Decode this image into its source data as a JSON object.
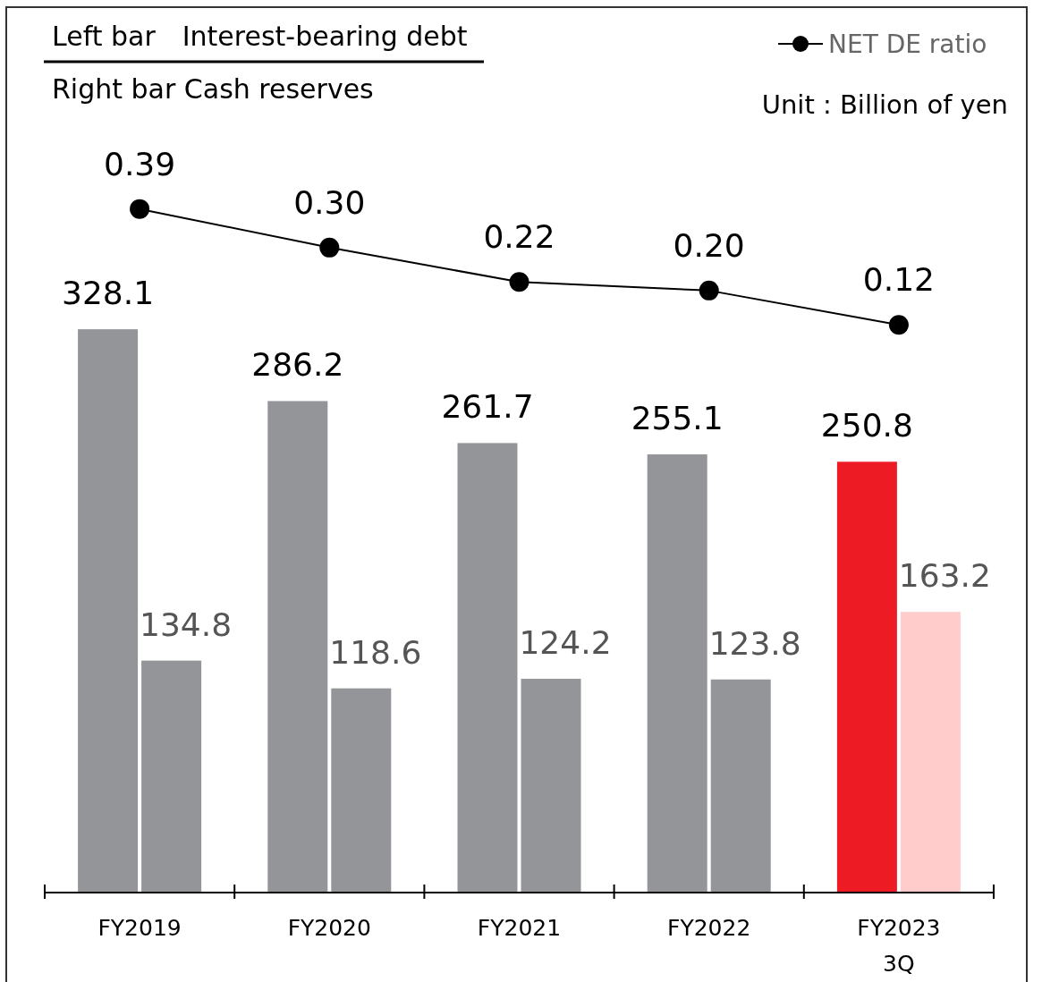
{
  "chart_data": {
    "type": "bar",
    "categories": [
      "FY2019",
      "FY2020",
      "FY2021",
      "FY2022",
      "FY2023\n3Q"
    ],
    "series": [
      {
        "colors": [
          "#939598",
          "#939598",
          "#939598",
          "#939598",
          "#ed1c24"
        ],
        "values": [
          328.1,
          286.2,
          261.7,
          255.1,
          250.8
        ]
      },
      {
        "colors": [
          "#939598",
          "#939598",
          "#939598",
          "#939598",
          "#ffcccb"
        ],
        "values": [
          134.8,
          118.6,
          124.2,
          123.8,
          163.2
        ]
      },
      {
        "type": "line",
        "name": "NET DE ratio",
        "color": "#000000",
        "axis": "y2",
        "values": [
          0.39,
          0.3,
          0.22,
          0.2,
          0.12
        ],
        "value_labels": [
          "0.39",
          "0.30",
          "0.22",
          "0.20",
          "0.12"
        ]
      }
    ],
    "ylim": [
      0,
      516
    ],
    "y2lim": [
      -1.2,
      0.86
    ],
    "data_labels": true,
    "legend": "top right",
    "marker": "circle",
    "tick_labels": "x",
    "annotations": [
      "Left bar　Interest-bearing debt",
      "Right bar Cash reserves",
      "Unit : Billion of yen"
    ]
  }
}
